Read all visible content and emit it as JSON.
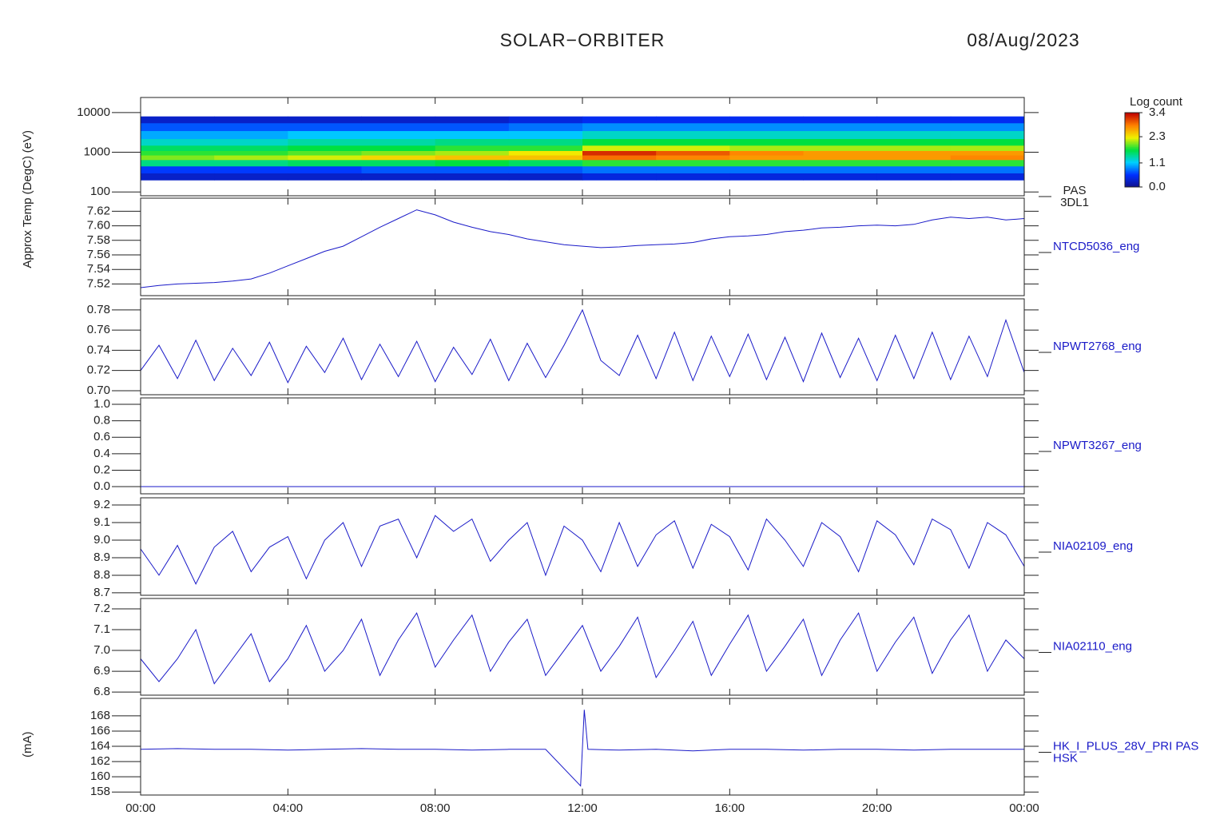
{
  "title": "SOLAR−ORBITER",
  "date": "08/Aug/2023",
  "y_labels": [
    "(eV)",
    "Approx Temp (DegC)",
    "(mA)"
  ],
  "chart_data": [
    {
      "type": "heatmap",
      "labels": [
        "PAS",
        "3DL1"
      ],
      "log_y": true,
      "xlim": [
        0,
        24
      ],
      "ylim": [
        80,
        24000
      ],
      "yticks": [
        100,
        1000,
        10000
      ],
      "x": [
        0,
        2,
        4,
        6,
        8,
        10,
        12,
        14,
        16,
        18,
        20,
        22,
        24
      ],
      "y": [
        200,
        300,
        450,
        650,
        850,
        1100,
        1500,
        2200,
        3500,
        5500,
        8000
      ],
      "values": [
        [
          0.3,
          0.6,
          1.5,
          2.0,
          1.8,
          1.6,
          1.3,
          1.0,
          0.7,
          0.3
        ],
        [
          0.3,
          0.6,
          1.5,
          2.1,
          1.8,
          1.6,
          1.3,
          1.0,
          0.7,
          0.3
        ],
        [
          0.3,
          0.6,
          1.6,
          2.2,
          1.9,
          1.7,
          1.4,
          1.1,
          0.7,
          0.3
        ],
        [
          0.3,
          0.7,
          1.6,
          2.4,
          2.0,
          1.7,
          1.4,
          1.1,
          0.7,
          0.3
        ],
        [
          0.3,
          0.7,
          1.7,
          2.5,
          2.1,
          1.8,
          1.5,
          1.1,
          0.7,
          0.3
        ],
        [
          0.3,
          0.7,
          1.6,
          2.5,
          2.3,
          1.8,
          1.5,
          1.1,
          0.8,
          0.4
        ],
        [
          0.4,
          0.8,
          1.8,
          2.9,
          3.2,
          2.2,
          1.7,
          1.3,
          0.9,
          0.5
        ],
        [
          0.4,
          0.8,
          1.8,
          2.8,
          3.0,
          2.2,
          1.7,
          1.3,
          0.9,
          0.5
        ],
        [
          0.4,
          0.8,
          1.8,
          2.7,
          2.8,
          2.1,
          1.7,
          1.3,
          0.9,
          0.5
        ],
        [
          0.4,
          0.8,
          1.8,
          2.7,
          2.7,
          2.1,
          1.7,
          1.3,
          0.9,
          0.5
        ],
        [
          0.4,
          0.8,
          1.8,
          2.7,
          2.7,
          2.1,
          1.7,
          1.3,
          0.9,
          0.5
        ],
        [
          0.4,
          0.8,
          1.8,
          2.8,
          2.7,
          2.1,
          1.7,
          1.3,
          0.9,
          0.5
        ]
      ],
      "colorbar_title": "Log count",
      "clim": [
        0,
        3.4
      ],
      "cticks": [
        {
          "value": 0,
          "label": "0.0"
        },
        1.1,
        2.3,
        3.4
      ],
      "colors": [
        "#10108a",
        "#0030ff",
        "#00d0ff",
        "#00e040",
        "#f0f000",
        "#ff8000",
        "#c00000"
      ]
    },
    {
      "type": "line",
      "labels": [
        "NTCD5036_eng"
      ],
      "color": "#1a1ac8",
      "xlim": [
        0,
        24
      ],
      "ylim": [
        7.504,
        7.638
      ],
      "yticks": [
        7.52,
        7.54,
        7.56,
        7.58,
        {
          "value": 7.6,
          "label": "7.60"
        },
        7.62
      ],
      "x": [
        0,
        0.5,
        1,
        1.5,
        2,
        2.5,
        3,
        3.5,
        4,
        4.5,
        5,
        5.5,
        6,
        6.5,
        7,
        7.5,
        8,
        8.5,
        9,
        9.5,
        10,
        10.5,
        11,
        11.5,
        12,
        12.5,
        13,
        13.5,
        14,
        14.5,
        15,
        15.5,
        16,
        16.5,
        17,
        17.5,
        18,
        18.5,
        19,
        19.5,
        20,
        20.5,
        21,
        21.5,
        22,
        22.5,
        23,
        23.5,
        24
      ],
      "series": [
        {
          "values": [
            7.515,
            7.518,
            7.52,
            7.521,
            7.522,
            7.524,
            7.527,
            7.535,
            7.545,
            7.555,
            7.565,
            7.572,
            7.585,
            7.598,
            7.61,
            7.622,
            7.615,
            7.605,
            7.598,
            7.592,
            7.588,
            7.582,
            7.578,
            7.574,
            7.572,
            7.57,
            7.571,
            7.573,
            7.574,
            7.575,
            7.577,
            7.582,
            7.585,
            7.586,
            7.588,
            7.592,
            7.594,
            7.597,
            7.598,
            7.6,
            7.601,
            7.6,
            7.602,
            7.608,
            7.612,
            7.61,
            7.612,
            7.608,
            7.61
          ]
        }
      ]
    },
    {
      "type": "line",
      "labels": [
        "NPWT2768_eng"
      ],
      "color": "#1a1ac8",
      "xlim": [
        0,
        24
      ],
      "ylim": [
        0.696,
        0.791
      ],
      "yticks": [
        {
          "value": 0.7,
          "label": "0.70"
        },
        0.72,
        0.74,
        0.76,
        0.78
      ],
      "x": [
        0,
        0.5,
        1,
        1.5,
        2,
        2.5,
        3,
        3.5,
        4,
        4.5,
        5,
        5.5,
        6,
        6.5,
        7,
        7.5,
        8,
        8.5,
        9,
        9.5,
        10,
        10.5,
        11,
        11.5,
        12,
        12.5,
        13,
        13.5,
        14,
        14.5,
        15,
        15.5,
        16,
        16.5,
        17,
        17.5,
        18,
        18.5,
        19,
        19.5,
        20,
        20.5,
        21,
        21.5,
        22,
        22.5,
        23,
        23.5,
        24
      ],
      "series": [
        {
          "values": [
            0.72,
            0.745,
            0.712,
            0.75,
            0.71,
            0.742,
            0.715,
            0.748,
            0.708,
            0.744,
            0.718,
            0.752,
            0.711,
            0.746,
            0.714,
            0.749,
            0.709,
            0.743,
            0.716,
            0.751,
            0.71,
            0.747,
            0.713,
            0.745,
            0.78,
            0.73,
            0.715,
            0.755,
            0.712,
            0.758,
            0.71,
            0.754,
            0.714,
            0.756,
            0.711,
            0.753,
            0.709,
            0.757,
            0.713,
            0.752,
            0.71,
            0.755,
            0.712,
            0.758,
            0.711,
            0.754,
            0.714,
            0.77,
            0.718
          ]
        }
      ]
    },
    {
      "type": "line",
      "labels": [
        "NPWT3267_eng"
      ],
      "color": "#1a1ac8",
      "xlim": [
        0,
        24
      ],
      "ylim": [
        -0.087,
        1.078
      ],
      "yticks": [
        {
          "value": 0,
          "label": "0.0"
        },
        0.2,
        0.4,
        0.6,
        0.8,
        {
          "value": 1,
          "label": "1.0"
        }
      ],
      "x": [
        0,
        1,
        2,
        3,
        4,
        5,
        6,
        7,
        8,
        9,
        10,
        11,
        12,
        13,
        14,
        15,
        16,
        17,
        18,
        19,
        20,
        21,
        22,
        23,
        24
      ],
      "series": [
        {
          "values": [
            0,
            0,
            0,
            0,
            0,
            0,
            0,
            0,
            0,
            0,
            0,
            0,
            0,
            0,
            0,
            0,
            0,
            0,
            0,
            0,
            0,
            0,
            0,
            0,
            0
          ]
        }
      ]
    },
    {
      "type": "line",
      "labels": [
        "NIA02109_eng"
      ],
      "color": "#1a1ac8",
      "xlim": [
        0,
        24
      ],
      "ylim": [
        8.686,
        9.241
      ],
      "yticks": [
        8.7,
        8.8,
        8.9,
        {
          "value": 9,
          "label": "9.0"
        },
        9.1,
        9.2
      ],
      "x": [
        0,
        0.5,
        1,
        1.5,
        2,
        2.5,
        3,
        3.5,
        4,
        4.5,
        5,
        5.5,
        6,
        6.5,
        7,
        7.5,
        8,
        8.5,
        9,
        9.5,
        10,
        10.5,
        11,
        11.5,
        12,
        12.5,
        13,
        13.5,
        14,
        14.5,
        15,
        15.5,
        16,
        16.5,
        17,
        17.5,
        18,
        18.5,
        19,
        19.5,
        20,
        20.5,
        21,
        21.5,
        22,
        22.5,
        23,
        23.5,
        24
      ],
      "series": [
        {
          "values": [
            8.95,
            8.8,
            8.97,
            8.75,
            8.96,
            9.05,
            8.82,
            8.96,
            9.02,
            8.78,
            9.0,
            9.1,
            8.85,
            9.08,
            9.12,
            8.9,
            9.14,
            9.05,
            9.12,
            8.88,
            9.0,
            9.1,
            8.8,
            9.08,
            9.0,
            8.82,
            9.1,
            8.85,
            9.03,
            9.11,
            8.84,
            9.09,
            9.02,
            8.83,
            9.12,
            9.0,
            8.85,
            9.1,
            9.02,
            8.82,
            9.11,
            9.03,
            8.86,
            9.12,
            9.06,
            8.84,
            9.1,
            9.03,
            8.85
          ]
        }
      ]
    },
    {
      "type": "line",
      "labels": [
        "NIA02110_eng"
      ],
      "color": "#1a1ac8",
      "xlim": [
        0,
        24
      ],
      "ylim": [
        6.785,
        7.25
      ],
      "yticks": [
        6.8,
        6.9,
        {
          "value": 7,
          "label": "7.0"
        },
        7.1,
        7.2
      ],
      "x": [
        0,
        0.5,
        1,
        1.5,
        2,
        2.5,
        3,
        3.5,
        4,
        4.5,
        5,
        5.5,
        6,
        6.5,
        7,
        7.5,
        8,
        8.5,
        9,
        9.5,
        10,
        10.5,
        11,
        11.5,
        12,
        12.5,
        13,
        13.5,
        14,
        14.5,
        15,
        15.5,
        16,
        16.5,
        17,
        17.5,
        18,
        18.5,
        19,
        19.5,
        20,
        20.5,
        21,
        21.5,
        22,
        22.5,
        23,
        23.5,
        24
      ],
      "series": [
        {
          "values": [
            6.96,
            6.85,
            6.96,
            7.1,
            6.84,
            6.96,
            7.08,
            6.85,
            6.96,
            7.12,
            6.9,
            7.0,
            7.15,
            6.88,
            7.05,
            7.18,
            6.92,
            7.05,
            7.17,
            6.9,
            7.04,
            7.15,
            6.88,
            7.0,
            7.12,
            6.9,
            7.02,
            7.16,
            6.87,
            7.0,
            7.14,
            6.88,
            7.03,
            7.17,
            6.9,
            7.02,
            7.15,
            6.88,
            7.05,
            7.18,
            6.9,
            7.04,
            7.16,
            6.89,
            7.05,
            7.17,
            6.9,
            7.05,
            6.96
          ]
        }
      ]
    },
    {
      "type": "line",
      "labels": [
        "HK_I_PLUS_28V_PRI PAS",
        "HSK"
      ],
      "color": "#1a1ac8",
      "xlim": [
        0,
        24
      ],
      "ylim": [
        157.6,
        170.3
      ],
      "yticks": [
        158,
        160,
        162,
        164,
        166,
        168
      ],
      "xticks": [
        {
          "value": 0,
          "label": "00:00"
        },
        {
          "value": 4,
          "label": "04:00"
        },
        {
          "value": 8,
          "label": "08:00"
        },
        {
          "value": 12,
          "label": "12:00"
        },
        {
          "value": 16,
          "label": "16:00"
        },
        {
          "value": 20,
          "label": "20:00"
        },
        {
          "value": 24,
          "label": "00:00"
        }
      ],
      "x": [
        0,
        1,
        2,
        3,
        4,
        5,
        6,
        7,
        8,
        9,
        10,
        11,
        11.95,
        12.05,
        12.15,
        13,
        14,
        15,
        16,
        17,
        18,
        19,
        20,
        21,
        22,
        23,
        24
      ],
      "series": [
        {
          "values": [
            163.6,
            163.7,
            163.6,
            163.6,
            163.5,
            163.6,
            163.7,
            163.6,
            163.6,
            163.5,
            163.6,
            163.6,
            158.8,
            168.8,
            163.6,
            163.5,
            163.6,
            163.4,
            163.6,
            163.6,
            163.5,
            163.6,
            163.6,
            163.5,
            163.6,
            163.6,
            163.6
          ]
        }
      ]
    }
  ]
}
